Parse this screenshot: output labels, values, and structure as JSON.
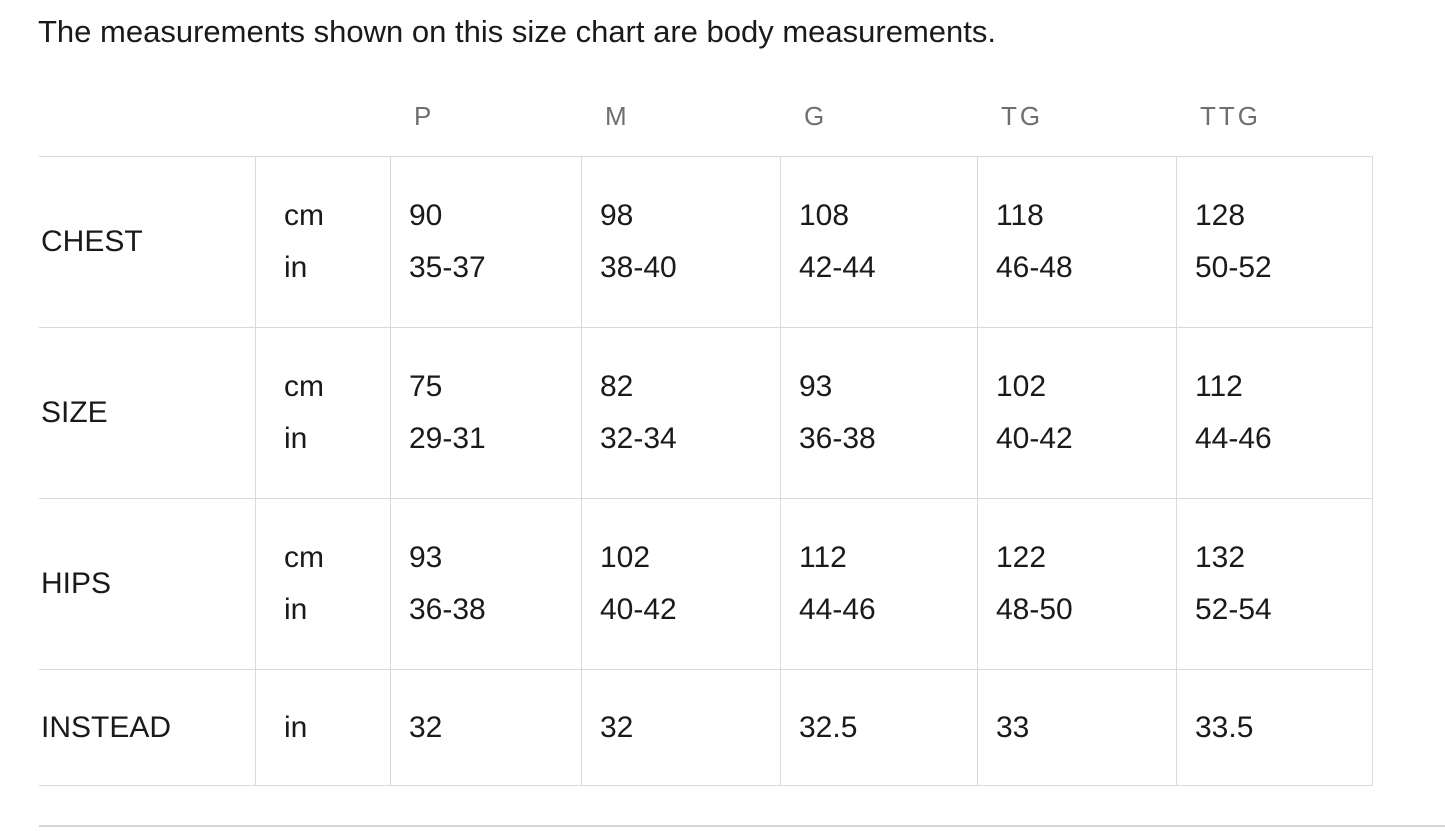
{
  "intro": "The measurements shown on this size chart are body measurements.",
  "size_chart": {
    "column_headers": [
      "P",
      "M",
      "G",
      "TG",
      "TTG"
    ],
    "rows": [
      {
        "label": "CHEST",
        "units": [
          "cm",
          "in"
        ],
        "values": [
          [
            "90",
            "35-37"
          ],
          [
            "98",
            "38-40"
          ],
          [
            "108",
            "42-44"
          ],
          [
            "118",
            "46-48"
          ],
          [
            "128",
            "50-52"
          ]
        ]
      },
      {
        "label": "SIZE",
        "units": [
          "cm",
          "in"
        ],
        "values": [
          [
            "75",
            "29-31"
          ],
          [
            "82",
            "32-34"
          ],
          [
            "93",
            "36-38"
          ],
          [
            "102",
            "40-42"
          ],
          [
            "112",
            "44-46"
          ]
        ]
      },
      {
        "label": "HIPS",
        "units": [
          "cm",
          "in"
        ],
        "values": [
          [
            "93",
            "36-38"
          ],
          [
            "102",
            "40-42"
          ],
          [
            "112",
            "44-46"
          ],
          [
            "122",
            "48-50"
          ],
          [
            "132",
            "52-54"
          ]
        ]
      },
      {
        "label": "INSTEAD",
        "units": [
          "in"
        ],
        "values": [
          [
            "32"
          ],
          [
            "32"
          ],
          [
            "32.5"
          ],
          [
            "33"
          ],
          [
            "33.5"
          ]
        ]
      }
    ]
  },
  "colors": {
    "text": "#1a1a1c",
    "header_muted": "#6f6f73",
    "table_border": "#d9d9d9",
    "bottom_separator": "#d4d4d4"
  }
}
